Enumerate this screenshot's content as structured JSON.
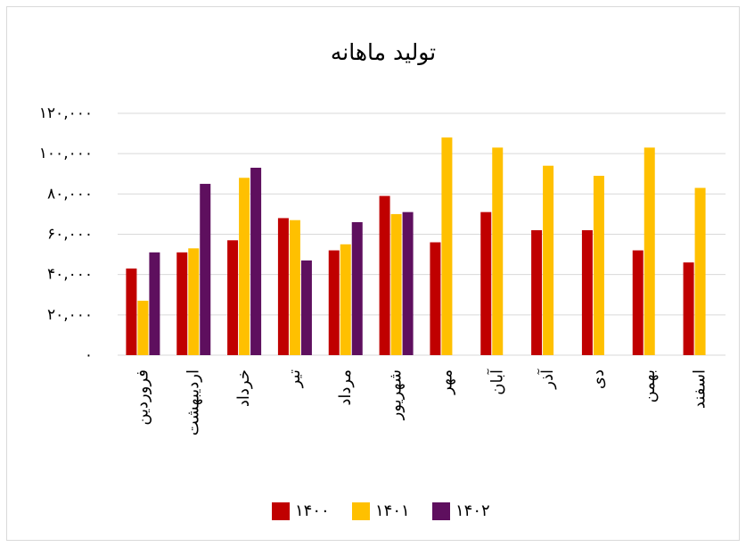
{
  "chart_data": {
    "type": "bar",
    "title": "تولید ماهانه",
    "categories": [
      "فروردین",
      "اردیبهشت",
      "خرداد",
      "تیر",
      "مرداد",
      "شهریور",
      "مهر",
      "آبان",
      "آذر",
      "دی",
      "بهمن",
      "اسفند"
    ],
    "series": [
      {
        "name": "۱۴۰۰",
        "color": "#c00000",
        "values": [
          43000,
          51000,
          57000,
          68000,
          52000,
          79000,
          56000,
          71000,
          62000,
          62000,
          52000,
          46000
        ]
      },
      {
        "name": "۱۴۰۱",
        "color": "#ffc000",
        "values": [
          27000,
          53000,
          88000,
          67000,
          55000,
          70000,
          108000,
          103000,
          94000,
          89000,
          103000,
          83000
        ]
      },
      {
        "name": "۱۴۰۲",
        "color": "#5e0f5e",
        "values": [
          51000,
          85000,
          93000,
          47000,
          66000,
          71000,
          null,
          null,
          null,
          null,
          null,
          null
        ]
      }
    ],
    "ylim": [
      0,
      120000
    ],
    "yticks": [
      {
        "value": 0,
        "label": "۰"
      },
      {
        "value": 20000,
        "label": "۲۰,۰۰۰"
      },
      {
        "value": 40000,
        "label": "۴۰,۰۰۰"
      },
      {
        "value": 60000,
        "label": "۶۰,۰۰۰"
      },
      {
        "value": 80000,
        "label": "۸۰,۰۰۰"
      },
      {
        "value": 100000,
        "label": "۱۰۰,۰۰۰"
      },
      {
        "value": 120000,
        "label": "۱۲۰,۰۰۰"
      }
    ],
    "grid": true,
    "legend": "bottom"
  }
}
